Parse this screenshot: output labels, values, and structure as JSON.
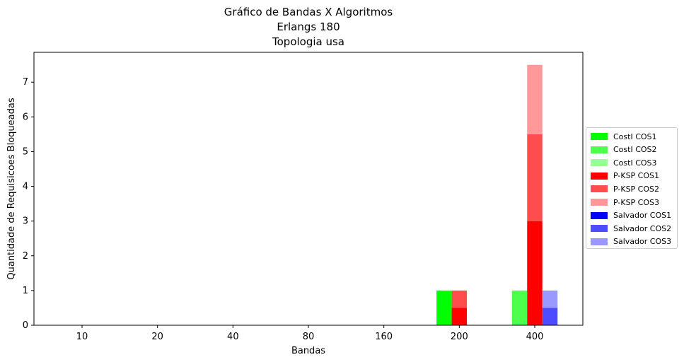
{
  "chart_data": {
    "type": "bar",
    "stacked": true,
    "title_lines": [
      "Gráfico de Bandas X Algoritmos",
      "Erlangs 180",
      "Topologia usa"
    ],
    "xlabel": "Bandas",
    "ylabel": "Quantidade de Requisicoes Bloqueadas",
    "categories": [
      "10",
      "20",
      "40",
      "80",
      "160",
      "200",
      "400"
    ],
    "yticks": [
      0,
      1,
      2,
      3,
      4,
      5,
      6,
      7
    ],
    "ylim": [
      0,
      7.86
    ],
    "legend_position": "center-right (outside)",
    "groups": [
      {
        "algorithm": "CostI",
        "series": [
          {
            "name": "CostI COS1",
            "color": "#00ff00",
            "values": [
              0,
              0,
              0,
              0,
              0,
              1,
              0
            ]
          },
          {
            "name": "CostI COS2",
            "color": "#4dff4d",
            "values": [
              0,
              0,
              0,
              0,
              0,
              0,
              1
            ]
          },
          {
            "name": "CostI COS3",
            "color": "#99ff99",
            "values": [
              0,
              0,
              0,
              0,
              0,
              0,
              0
            ]
          }
        ]
      },
      {
        "algorithm": "P-KSP",
        "series": [
          {
            "name": "P-KSP COS1",
            "color": "#ff0000",
            "values": [
              0,
              0,
              0,
              0,
              0,
              0.5,
              3
            ]
          },
          {
            "name": "P-KSP COS2",
            "color": "#ff4d4d",
            "values": [
              0,
              0,
              0,
              0,
              0,
              0.5,
              2.5
            ]
          },
          {
            "name": "P-KSP COS3",
            "color": "#ff9999",
            "values": [
              0,
              0,
              0,
              0,
              0,
              0,
              2
            ]
          }
        ]
      },
      {
        "algorithm": "Salvador",
        "series": [
          {
            "name": "Salvador COS1",
            "color": "#0000ff",
            "values": [
              0,
              0,
              0,
              0,
              0,
              0,
              0
            ]
          },
          {
            "name": "Salvador COS2",
            "color": "#4d4dff",
            "values": [
              0,
              0,
              0,
              0,
              0,
              0,
              0.5
            ]
          },
          {
            "name": "Salvador COS3",
            "color": "#9999ff",
            "values": [
              0,
              0,
              0,
              0,
              0,
              0,
              0.5
            ]
          }
        ]
      }
    ]
  }
}
